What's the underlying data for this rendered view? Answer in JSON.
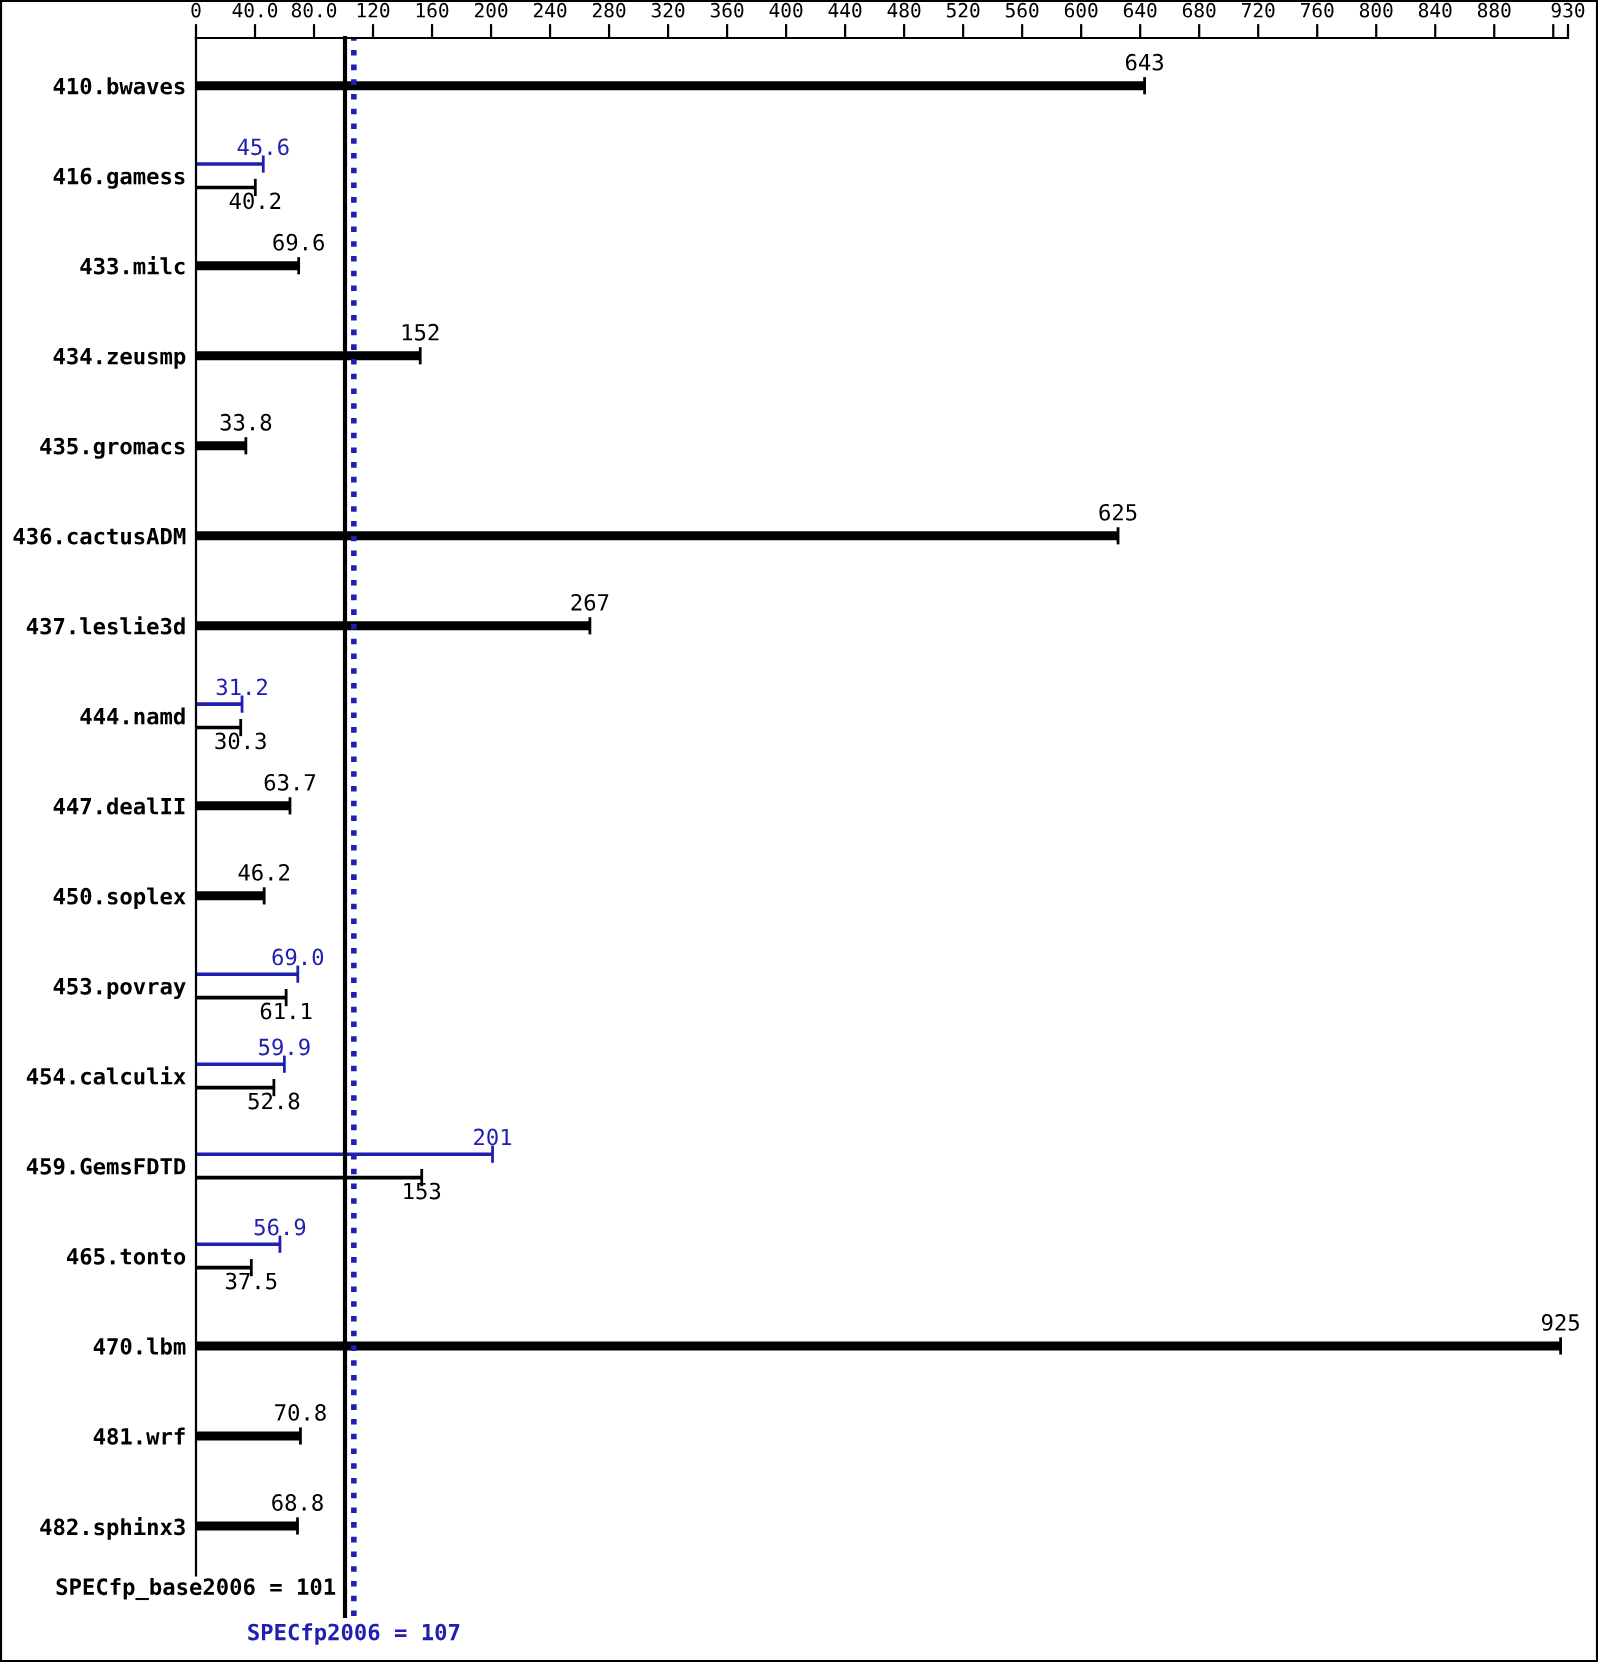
{
  "chart_data": {
    "type": "bar",
    "orientation": "horizontal",
    "categories": [
      "410.bwaves",
      "416.gamess",
      "433.milc",
      "434.zeusmp",
      "435.gromacs",
      "436.cactusADM",
      "437.leslie3d",
      "444.namd",
      "447.dealII",
      "450.soplex",
      "453.povray",
      "454.calculix",
      "459.GemsFDTD",
      "465.tonto",
      "470.lbm",
      "481.wrf",
      "482.sphinx3"
    ],
    "series": [
      {
        "color": "#000000",
        "values": [
          643,
          40.2,
          69.6,
          152,
          33.8,
          625,
          267,
          30.3,
          63.7,
          46.2,
          61.1,
          52.8,
          153,
          37.5,
          925,
          70.8,
          68.8
        ],
        "value_labels": [
          "643",
          "40.2",
          "69.6",
          "152",
          "33.8",
          "625",
          "267",
          "30.3",
          "63.7",
          "46.2",
          "61.1",
          "52.8",
          "153",
          "37.5",
          "925",
          "70.8",
          "68.8"
        ]
      },
      {
        "color": "#1f1fb0",
        "values": [
          null,
          45.6,
          null,
          null,
          null,
          null,
          null,
          31.2,
          null,
          null,
          69.0,
          59.9,
          201,
          56.9,
          null,
          null,
          null
        ],
        "value_labels": [
          null,
          "45.6",
          null,
          null,
          null,
          null,
          null,
          "31.2",
          null,
          null,
          "69.0",
          "59.9",
          "201",
          "56.9",
          null,
          null,
          null
        ]
      }
    ],
    "xlim": [
      0,
      930
    ],
    "xticks": [
      0,
      {
        "value": 40,
        "label": "40.0"
      },
      {
        "value": 80,
        "label": "80.0"
      },
      120,
      160,
      200,
      240,
      280,
      320,
      360,
      400,
      440,
      480,
      520,
      560,
      600,
      640,
      680,
      720,
      760,
      800,
      840,
      880,
      {
        "value": 920,
        "label": null
      },
      930
    ],
    "ref_lines": [
      {
        "axis": "x",
        "value": 101,
        "label": "SPECfp_base2006 = 101",
        "color": "#000000",
        "line_style": "solid"
      },
      {
        "axis": "x",
        "value": 107,
        "label": "SPECfp2006 = 107",
        "color": "#1f1fb0",
        "line_style": "dotted"
      }
    ],
    "grid": false,
    "legend": false,
    "stacked": false
  }
}
